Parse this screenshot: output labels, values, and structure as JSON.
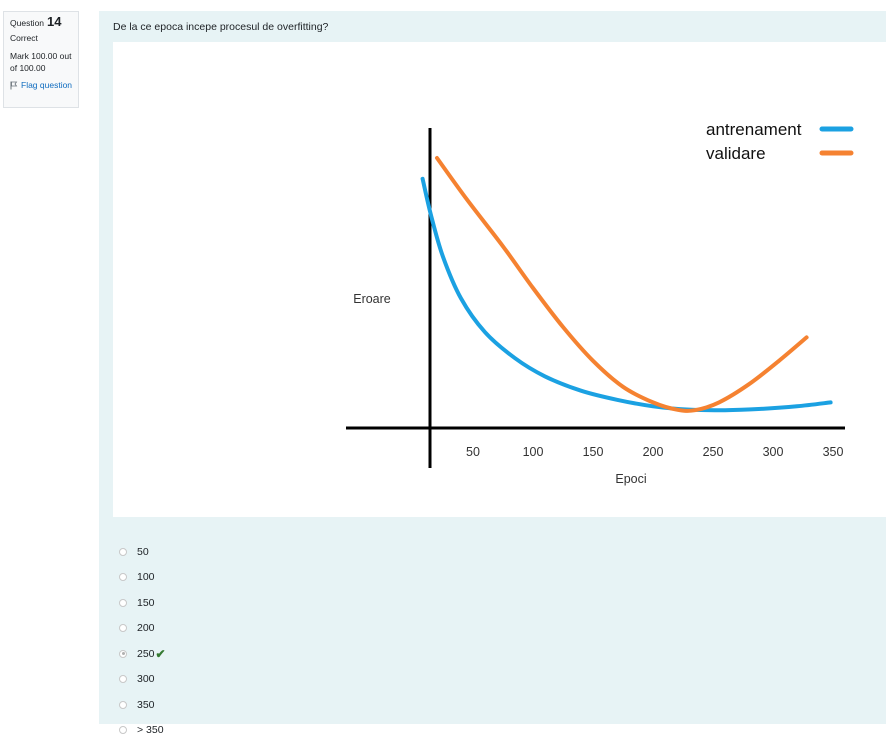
{
  "question_info": {
    "label": "Question",
    "number": "14",
    "state": "Correct",
    "grade": "Mark 100.00 out of 100.00",
    "flag_label": "Flag question"
  },
  "question_text": "De la ce epoca incepe procesul de overfitting?",
  "chart_data": {
    "type": "line",
    "xlabel": "Epoci",
    "ylabel": "Eroare",
    "x_ticks": [
      50,
      100,
      150,
      200,
      250,
      300,
      350
    ],
    "xlim": [
      0,
      360
    ],
    "ylim": [
      0,
      10
    ],
    "legend_position": "top-right",
    "series": [
      {
        "name": "antrenament",
        "color": "#1ba1e2",
        "points": [
          [
            8,
            9.2
          ],
          [
            15,
            7.8
          ],
          [
            25,
            6.2
          ],
          [
            40,
            4.6
          ],
          [
            60,
            3.3
          ],
          [
            85,
            2.3
          ],
          [
            110,
            1.6
          ],
          [
            140,
            1.05
          ],
          [
            170,
            0.7
          ],
          [
            200,
            0.45
          ],
          [
            230,
            0.32
          ],
          [
            260,
            0.3
          ],
          [
            290,
            0.35
          ],
          [
            320,
            0.45
          ],
          [
            348,
            0.6
          ]
        ]
      },
      {
        "name": "validare",
        "color": "#f58231",
        "points": [
          [
            20,
            10
          ],
          [
            45,
            8.4
          ],
          [
            75,
            6.6
          ],
          [
            100,
            5.0
          ],
          [
            125,
            3.5
          ],
          [
            150,
            2.2
          ],
          [
            175,
            1.2
          ],
          [
            200,
            0.6
          ],
          [
            220,
            0.32
          ],
          [
            235,
            0.3
          ],
          [
            255,
            0.6
          ],
          [
            280,
            1.3
          ],
          [
            305,
            2.2
          ],
          [
            328,
            3.1
          ]
        ]
      }
    ]
  },
  "answers": [
    {
      "label": "50",
      "checked": false,
      "correct": false
    },
    {
      "label": "100",
      "checked": false,
      "correct": false
    },
    {
      "label": "150",
      "checked": false,
      "correct": false
    },
    {
      "label": "200",
      "checked": false,
      "correct": false
    },
    {
      "label": "250",
      "checked": true,
      "correct": true
    },
    {
      "label": "300",
      "checked": false,
      "correct": false
    },
    {
      "label": "350",
      "checked": false,
      "correct": false
    },
    {
      "label": "> 350",
      "checked": false,
      "correct": false
    }
  ]
}
